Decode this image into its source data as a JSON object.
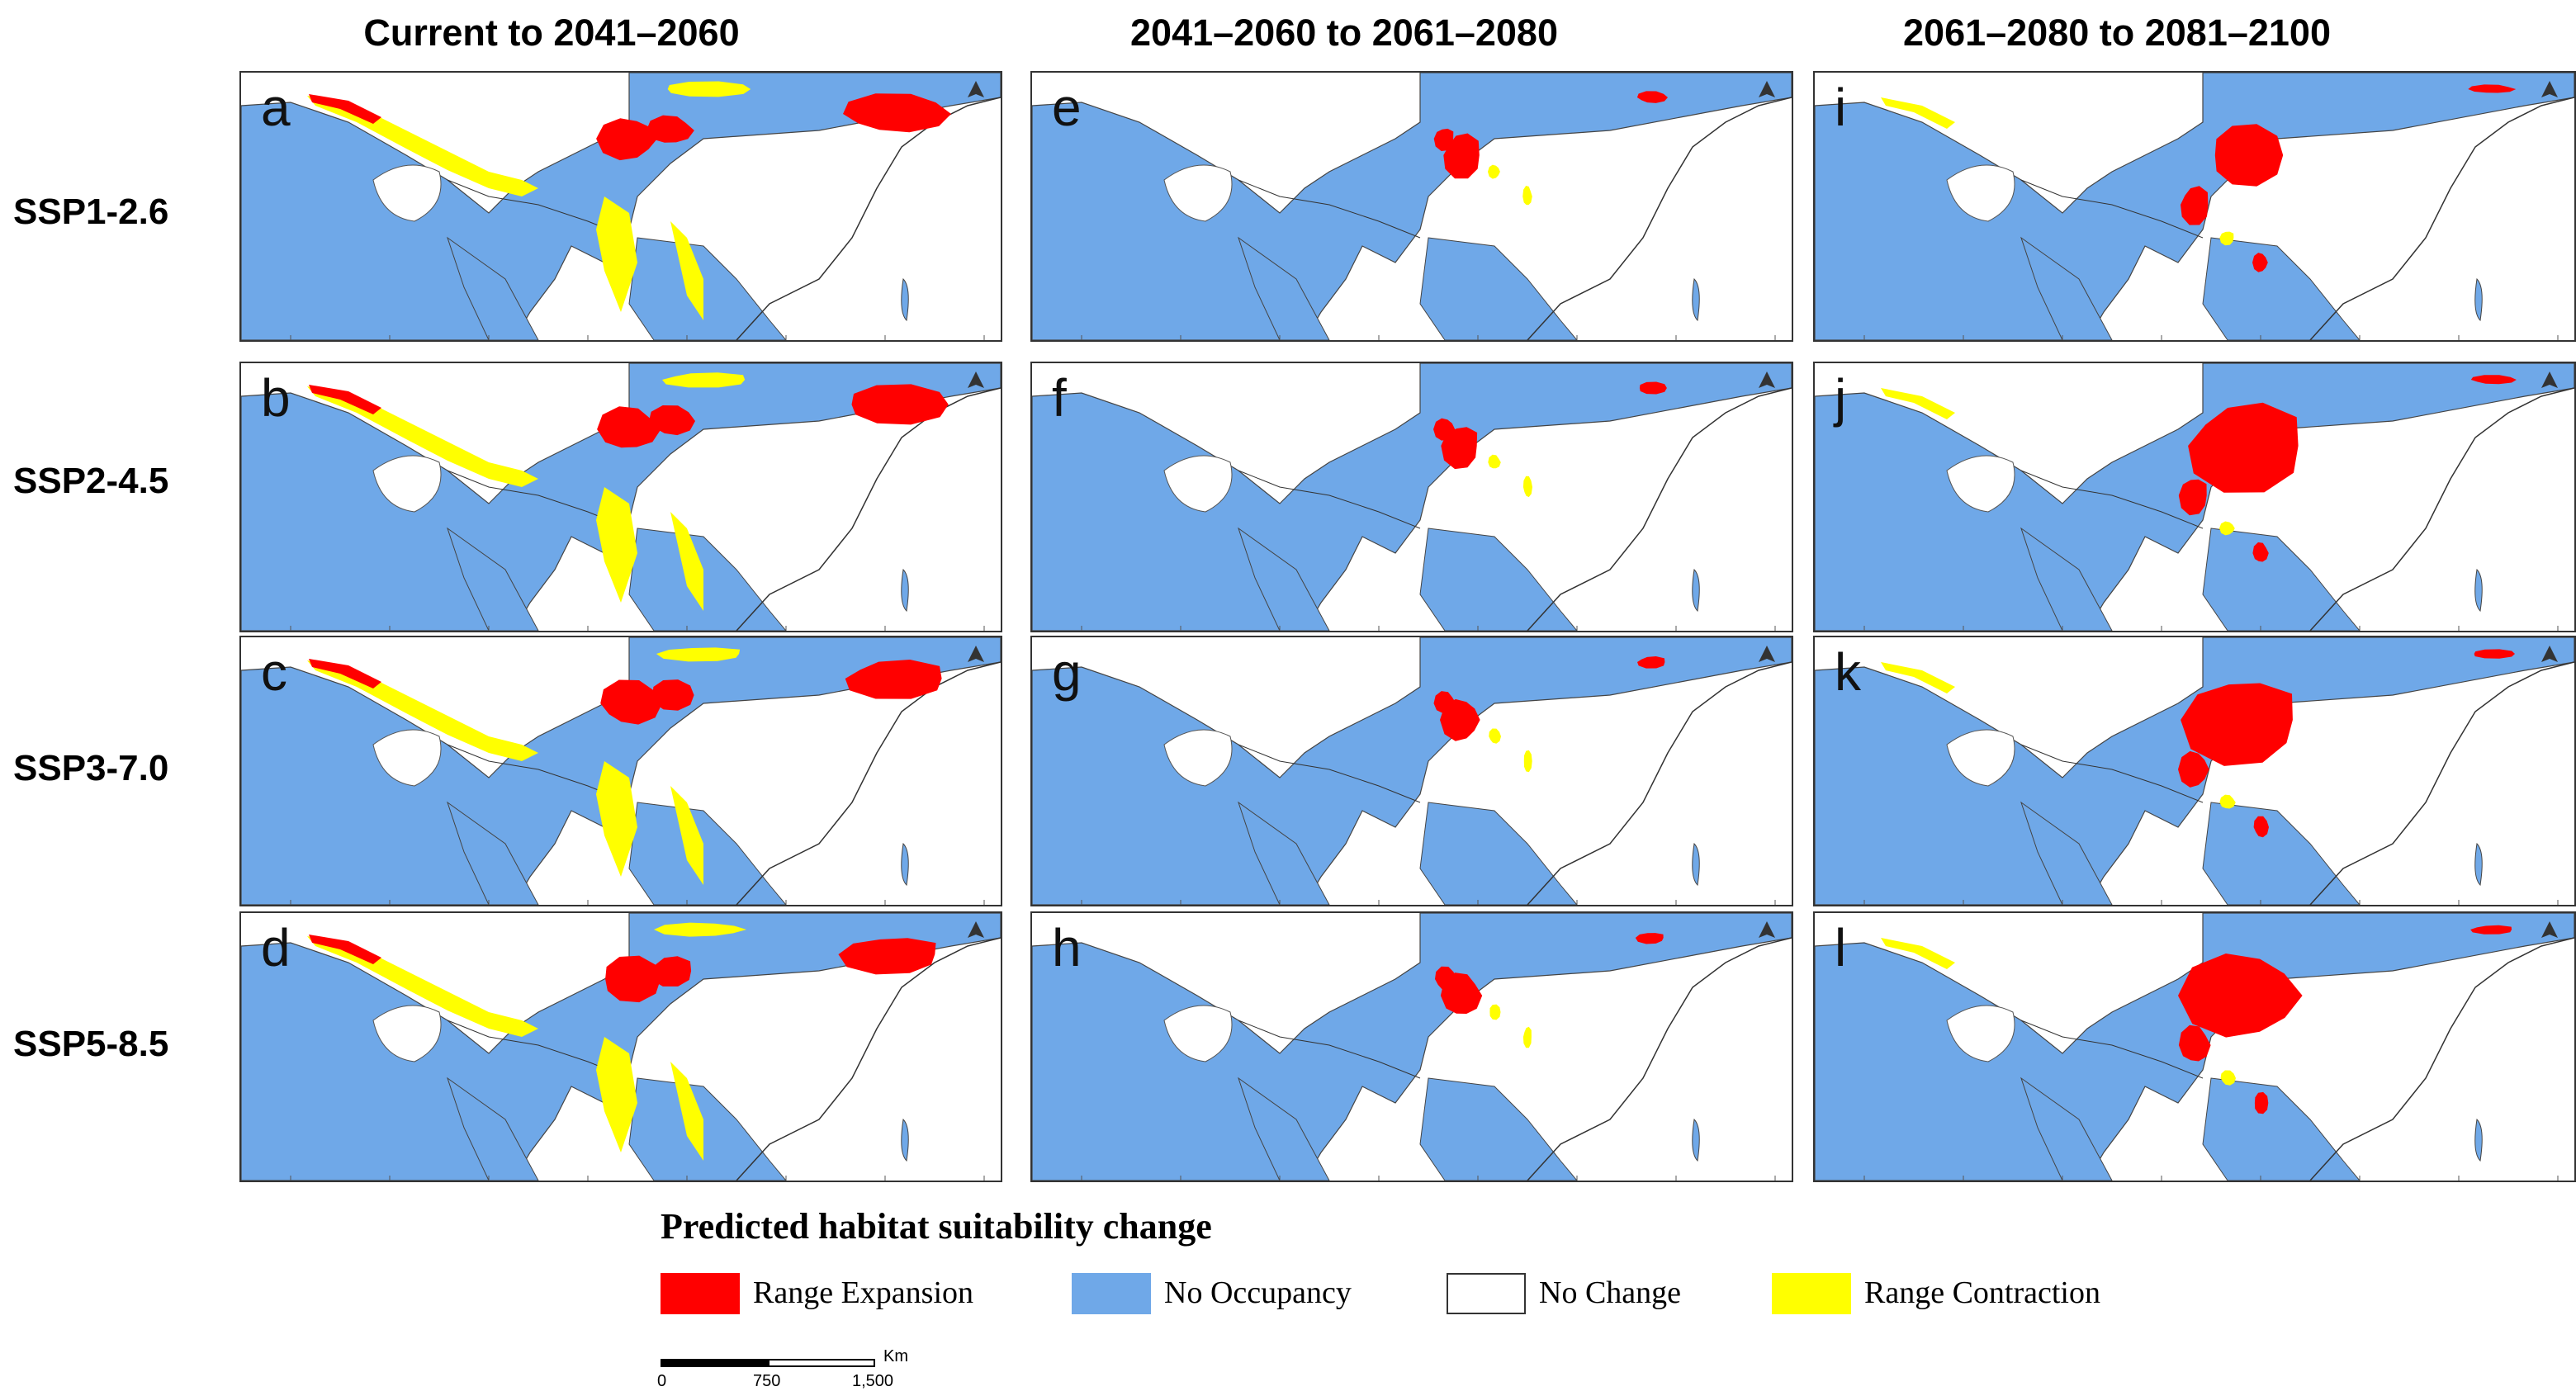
{
  "column_titles": [
    "Current to 2041–2060",
    "2041–2060 to 2061–2080",
    "2061–2080 to 2081–2100"
  ],
  "row_labels": [
    "SSP1-2.6",
    "SSP2-4.5",
    "SSP3-7.0",
    "SSP5-8.5"
  ],
  "panel_labels": [
    [
      "a",
      "e",
      "i"
    ],
    [
      "b",
      "f",
      "j"
    ],
    [
      "c",
      "g",
      "k"
    ],
    [
      "d",
      "h",
      "l"
    ]
  ],
  "legend": {
    "title": "Predicted habitat suitability change",
    "items": [
      {
        "label": "Range Expansion",
        "color": "#ff0000"
      },
      {
        "label": "No Occupancy",
        "color": "#6fa8e8"
      },
      {
        "label": "No Change",
        "color": "#ffffff"
      },
      {
        "label": "Range Contraction",
        "color": "#ffff00"
      }
    ]
  },
  "scale_bar": {
    "unit": "Km",
    "ticks": [
      "0",
      "750",
      "1,500"
    ]
  },
  "colors": {
    "expansion": "#ff0000",
    "no_occupancy": "#6fa8e8",
    "no_change": "#ffffff",
    "contraction": "#ffff00",
    "border": "#333333"
  }
}
